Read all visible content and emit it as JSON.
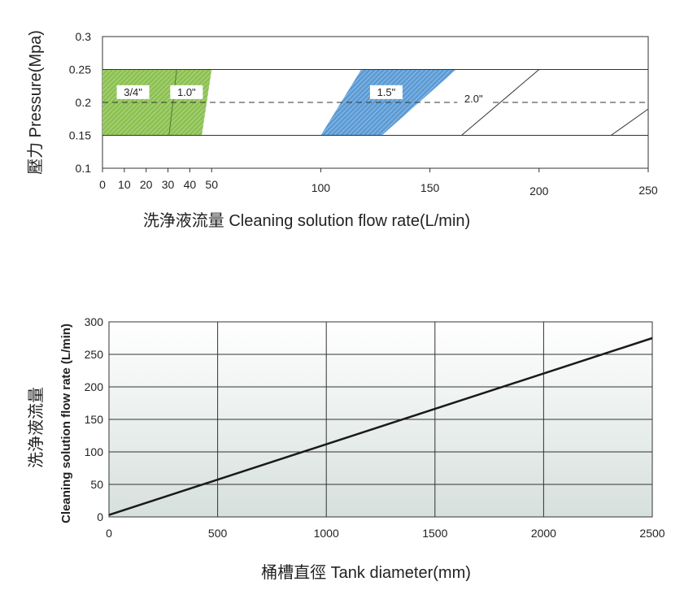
{
  "chart_data": [
    {
      "type": "area",
      "xlabel": "洗浄液流量 Cleaning solution flow rate(L/min)",
      "ylabel": "壓力 Pressure(Mpa)",
      "xlim": [
        0,
        250
      ],
      "ylim": [
        0.1,
        0.3
      ],
      "x_ticks": [
        {
          "value": 0,
          "label": "0"
        },
        {
          "value": 10,
          "label": "10"
        },
        {
          "value": 20,
          "label": "20"
        },
        {
          "value": 30,
          "label": "30"
        },
        {
          "value": 40,
          "label": "40"
        },
        {
          "value": 50,
          "label": "50"
        },
        {
          "value": 100,
          "label": "100"
        },
        {
          "value": 150,
          "label": "150"
        },
        {
          "value": 200,
          "label": "200"
        },
        {
          "value": 250,
          "label": "250"
        }
      ],
      "y_ticks": [
        {
          "value": 0.1,
          "label": "0.1"
        },
        {
          "value": 0.15,
          "label": "0.15"
        },
        {
          "value": 0.2,
          "label": "0.2"
        },
        {
          "value": 0.25,
          "label": "0.25"
        },
        {
          "value": 0.3,
          "label": "0.3"
        }
      ],
      "reference_line": {
        "y": 0.2,
        "style": "dashed"
      },
      "pressure_band": [
        0.15,
        0.25
      ],
      "series": [
        {
          "name": "3/4\"",
          "fill": "#8cc152",
          "hatched": true,
          "polygon": [
            [
              0,
              0.15
            ],
            [
              30.5,
              0.15
            ],
            [
              34,
              0.25
            ],
            [
              0,
              0.25
            ]
          ],
          "label_at": [
            14,
            0.215
          ]
        },
        {
          "name": "1.0\"",
          "fill": "#8cc152",
          "hatched": true,
          "polygon": [
            [
              30.5,
              0.15
            ],
            [
              45.5,
              0.15
            ],
            [
              50,
              0.25
            ],
            [
              34,
              0.25
            ]
          ],
          "label_at": [
            38.5,
            0.215
          ]
        },
        {
          "name": "1.5\"",
          "fill": "#5b9bd5",
          "hatched": true,
          "polygon": [
            [
              100,
              0.15
            ],
            [
              128,
              0.15
            ],
            [
              162,
              0.25
            ],
            [
              118.5,
              0.25
            ]
          ],
          "label_at": [
            130,
            0.215
          ]
        },
        {
          "name": "2.0\"",
          "fill": "none",
          "hatched": false,
          "lines": [
            [
              [
                164.5,
                0.15
              ],
              [
                200,
                0.25
              ]
            ],
            [
              [
                233,
                0.15
              ],
              [
                250,
                0.19
              ]
            ]
          ],
          "label_at": [
            170,
            0.205
          ]
        }
      ]
    },
    {
      "type": "line",
      "xlabel": "桶槽直徑 Tank diameter(mm)",
      "ylabel_cjk": "洗浄液流量",
      "ylabel": "Cleaning solution flow rate (L/min)",
      "xlim": [
        0,
        2500
      ],
      "ylim": [
        0,
        300
      ],
      "x_ticks": [
        0,
        500,
        1000,
        1500,
        2000,
        2500
      ],
      "y_ticks": [
        0,
        50,
        100,
        150,
        200,
        250,
        300
      ],
      "grid": true,
      "series": [
        {
          "x": [
            0,
            2500
          ],
          "y": [
            3,
            275
          ]
        }
      ]
    }
  ]
}
